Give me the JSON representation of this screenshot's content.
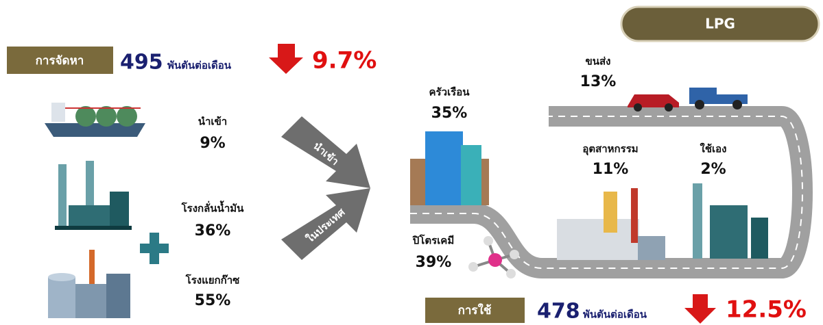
{
  "header": {
    "badge": "LPG"
  },
  "supply": {
    "label": "การจัดหา",
    "amount": "495",
    "unit": "พันตันต่อเดือน",
    "change": "9.7%",
    "sources": [
      {
        "name": "นำเข้า",
        "share": "9%"
      },
      {
        "name": "โรงกลั่นน้ำมัน",
        "share": "36%"
      },
      {
        "name": "โรงแยกก๊าซ",
        "share": "55%"
      }
    ]
  },
  "arrows": {
    "import": "นำเข้า",
    "domestic": "ในประเทศ"
  },
  "usage": {
    "label": "การใช้",
    "amount": "478",
    "unit": "พันตันต่อเดือน",
    "change": "12.5%",
    "sectors": [
      {
        "name": "ครัวเรือน",
        "share": "35%"
      },
      {
        "name": "ขนส่ง",
        "share": "13%"
      },
      {
        "name": "อุตสาหกรรม",
        "share": "11%"
      },
      {
        "name": "ใช้เอง",
        "share": "2%"
      },
      {
        "name": "ปิโตรเคมี",
        "share": "39%"
      }
    ]
  }
}
